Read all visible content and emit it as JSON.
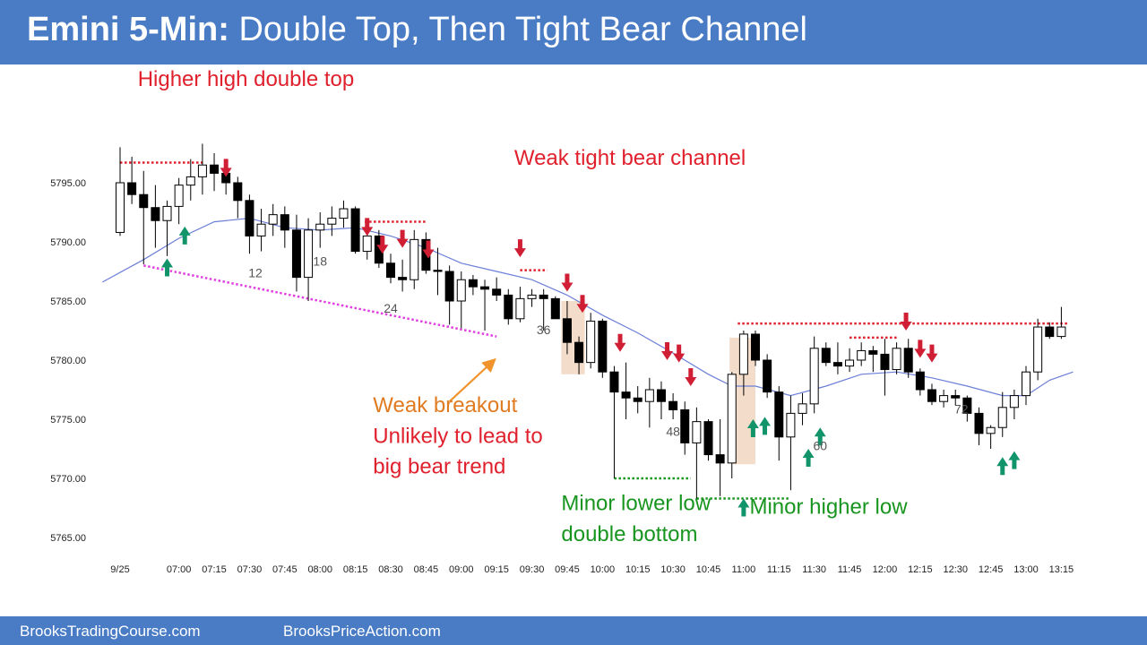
{
  "header": {
    "title_bold": "Emini 5-Min:",
    "title_rest": "Double Top, Then Tight Bear Channel"
  },
  "footer": {
    "left_link": "BrooksTradingCourse.com",
    "right_link": "BrooksPriceAction.com"
  },
  "colors": {
    "header_bg": "#4a7cc5",
    "bull_body": "#ffffff",
    "bear_body": "#000000",
    "ema": "#6b7fd7",
    "red_arrow": "#d01f35",
    "green_arrow": "#12946b",
    "red_text": "#e0202c",
    "green_text": "#18951f",
    "orange_text": "#e07b21",
    "magenta_line": "#e040e0",
    "highlight": "#f3dcc9"
  },
  "chart_data": {
    "type": "candlestick",
    "title": "Emini 5-Min: Double Top, Then Tight Bear Channel",
    "ylim": [
      5763,
      5800
    ],
    "y_ticks": [
      5765.0,
      5770.0,
      5775.0,
      5780.0,
      5785.0,
      5790.0,
      5795.0
    ],
    "y_tick_labels": [
      "5765.00",
      "5770.00",
      "5775.00",
      "5780.00",
      "5785.00",
      "5790.00",
      "5795.00"
    ],
    "x_tick_labels": [
      {
        "bar": 0,
        "label": "9/25"
      },
      {
        "bar": 5,
        "label": "07:00"
      },
      {
        "bar": 8,
        "label": "07:15"
      },
      {
        "bar": 11,
        "label": "07:30"
      },
      {
        "bar": 14,
        "label": "07:45"
      },
      {
        "bar": 17,
        "label": "08:00"
      },
      {
        "bar": 20,
        "label": "08:15"
      },
      {
        "bar": 23,
        "label": "08:30"
      },
      {
        "bar": 26,
        "label": "08:45"
      },
      {
        "bar": 29,
        "label": "09:00"
      },
      {
        "bar": 32,
        "label": "09:15"
      },
      {
        "bar": 35,
        "label": "09:30"
      },
      {
        "bar": 38,
        "label": "09:45"
      },
      {
        "bar": 41,
        "label": "10:00"
      },
      {
        "bar": 44,
        "label": "10:15"
      },
      {
        "bar": 47,
        "label": "10:30"
      },
      {
        "bar": 50,
        "label": "10:45"
      },
      {
        "bar": 53,
        "label": "11:00"
      },
      {
        "bar": 56,
        "label": "11:15"
      },
      {
        "bar": 59,
        "label": "11:30"
      },
      {
        "bar": 62,
        "label": "11:45"
      },
      {
        "bar": 65,
        "label": "12:00"
      },
      {
        "bar": 68,
        "label": "12:15"
      },
      {
        "bar": 71,
        "label": "12:30"
      },
      {
        "bar": 74,
        "label": "12:45"
      },
      {
        "bar": 77,
        "label": "13:00"
      },
      {
        "bar": 80,
        "label": "13:15"
      }
    ],
    "bars": [
      {
        "o": 5790.8,
        "h": 5798.0,
        "l": 5790.5,
        "c": 5795.0
      },
      {
        "o": 5795.0,
        "h": 5797.2,
        "l": 5793.2,
        "c": 5794.0
      },
      {
        "o": 5794.0,
        "h": 5796.0,
        "l": 5788.1,
        "c": 5792.9
      },
      {
        "o": 5792.9,
        "h": 5794.8,
        "l": 5789.5,
        "c": 5791.8
      },
      {
        "o": 5791.8,
        "h": 5793.5,
        "l": 5788.8,
        "c": 5793.0
      },
      {
        "o": 5793.0,
        "h": 5795.4,
        "l": 5791.5,
        "c": 5794.8
      },
      {
        "o": 5794.8,
        "h": 5797.0,
        "l": 5793.5,
        "c": 5795.5
      },
      {
        "o": 5795.5,
        "h": 5798.3,
        "l": 5794.0,
        "c": 5796.5
      },
      {
        "o": 5796.5,
        "h": 5797.5,
        "l": 5794.3,
        "c": 5795.8
      },
      {
        "o": 5795.8,
        "h": 5796.8,
        "l": 5794.0,
        "c": 5795.0
      },
      {
        "o": 5795.0,
        "h": 5795.5,
        "l": 5792.0,
        "c": 5793.5
      },
      {
        "o": 5793.5,
        "h": 5794.0,
        "l": 5789.0,
        "c": 5790.5
      },
      {
        "o": 5790.5,
        "h": 5792.8,
        "l": 5789.2,
        "c": 5791.5
      },
      {
        "o": 5791.5,
        "h": 5793.2,
        "l": 5790.5,
        "c": 5792.3
      },
      {
        "o": 5792.3,
        "h": 5793.0,
        "l": 5789.5,
        "c": 5791.0
      },
      {
        "o": 5791.0,
        "h": 5792.3,
        "l": 5785.8,
        "c": 5787.0
      },
      {
        "o": 5787.0,
        "h": 5792.0,
        "l": 5785.0,
        "c": 5791.0
      },
      {
        "o": 5791.0,
        "h": 5792.5,
        "l": 5789.5,
        "c": 5791.5
      },
      {
        "o": 5791.5,
        "h": 5793.0,
        "l": 5790.5,
        "c": 5792.0
      },
      {
        "o": 5792.0,
        "h": 5793.5,
        "l": 5791.2,
        "c": 5792.8
      },
      {
        "o": 5792.8,
        "h": 5793.0,
        "l": 5789.0,
        "c": 5789.2
      },
      {
        "o": 5789.2,
        "h": 5791.5,
        "l": 5788.5,
        "c": 5790.5
      },
      {
        "o": 5790.5,
        "h": 5791.0,
        "l": 5787.8,
        "c": 5788.2
      },
      {
        "o": 5788.2,
        "h": 5789.0,
        "l": 5786.5,
        "c": 5787.0
      },
      {
        "o": 5787.0,
        "h": 5788.5,
        "l": 5785.8,
        "c": 5786.8
      },
      {
        "o": 5786.8,
        "h": 5791.0,
        "l": 5786.0,
        "c": 5790.2
      },
      {
        "o": 5790.2,
        "h": 5790.8,
        "l": 5787.3,
        "c": 5787.6
      },
      {
        "o": 5787.6,
        "h": 5789.5,
        "l": 5785.5,
        "c": 5787.5
      },
      {
        "o": 5787.5,
        "h": 5788.0,
        "l": 5783.0,
        "c": 5785.0
      },
      {
        "o": 5785.0,
        "h": 5787.5,
        "l": 5782.7,
        "c": 5786.8
      },
      {
        "o": 5786.8,
        "h": 5787.2,
        "l": 5785.5,
        "c": 5786.2
      },
      {
        "o": 5786.2,
        "h": 5786.8,
        "l": 5782.5,
        "c": 5786.0
      },
      {
        "o": 5786.0,
        "h": 5787.0,
        "l": 5785.0,
        "c": 5785.5
      },
      {
        "o": 5785.5,
        "h": 5786.0,
        "l": 5783.0,
        "c": 5783.5
      },
      {
        "o": 5783.5,
        "h": 5786.2,
        "l": 5783.2,
        "c": 5785.2
      },
      {
        "o": 5785.2,
        "h": 5786.0,
        "l": 5784.5,
        "c": 5785.5
      },
      {
        "o": 5785.5,
        "h": 5786.0,
        "l": 5782.5,
        "c": 5785.2
      },
      {
        "o": 5785.2,
        "h": 5785.4,
        "l": 5783.5,
        "c": 5783.5
      },
      {
        "o": 5783.5,
        "h": 5785.0,
        "l": 5780.5,
        "c": 5781.5
      },
      {
        "o": 5781.5,
        "h": 5782.0,
        "l": 5778.8,
        "c": 5779.8
      },
      {
        "o": 5779.8,
        "h": 5784.0,
        "l": 5779.3,
        "c": 5783.3
      },
      {
        "o": 5783.3,
        "h": 5783.5,
        "l": 5778.5,
        "c": 5779.0
      },
      {
        "o": 5779.0,
        "h": 5779.5,
        "l": 5770.0,
        "c": 5777.3
      },
      {
        "o": 5777.3,
        "h": 5779.8,
        "l": 5775.0,
        "c": 5776.8
      },
      {
        "o": 5776.8,
        "h": 5777.8,
        "l": 5775.5,
        "c": 5776.5
      },
      {
        "o": 5776.5,
        "h": 5778.5,
        "l": 5774.3,
        "c": 5777.5
      },
      {
        "o": 5777.5,
        "h": 5778.2,
        "l": 5775.0,
        "c": 5776.5
      },
      {
        "o": 5776.5,
        "h": 5777.2,
        "l": 5775.0,
        "c": 5775.8
      },
      {
        "o": 5775.8,
        "h": 5776.5,
        "l": 5772.0,
        "c": 5773.0
      },
      {
        "o": 5773.0,
        "h": 5776.0,
        "l": 5768.2,
        "c": 5774.8
      },
      {
        "o": 5774.8,
        "h": 5775.0,
        "l": 5771.5,
        "c": 5772.0
      },
      {
        "o": 5772.0,
        "h": 5775.0,
        "l": 5768.5,
        "c": 5771.3
      },
      {
        "o": 5771.3,
        "h": 5779.0,
        "l": 5770.0,
        "c": 5778.8
      },
      {
        "o": 5778.8,
        "h": 5782.5,
        "l": 5777.0,
        "c": 5782.2
      },
      {
        "o": 5782.2,
        "h": 5782.5,
        "l": 5779.5,
        "c": 5780.0
      },
      {
        "o": 5780.0,
        "h": 5780.5,
        "l": 5776.8,
        "c": 5777.3
      },
      {
        "o": 5777.3,
        "h": 5777.8,
        "l": 5771.5,
        "c": 5773.5
      },
      {
        "o": 5773.5,
        "h": 5777.0,
        "l": 5769.0,
        "c": 5775.5
      },
      {
        "o": 5775.5,
        "h": 5777.2,
        "l": 5774.5,
        "c": 5776.3
      },
      {
        "o": 5776.3,
        "h": 5782.0,
        "l": 5775.5,
        "c": 5781.0
      },
      {
        "o": 5781.0,
        "h": 5781.5,
        "l": 5779.5,
        "c": 5779.8
      },
      {
        "o": 5779.8,
        "h": 5781.5,
        "l": 5778.8,
        "c": 5779.5
      },
      {
        "o": 5779.5,
        "h": 5781.0,
        "l": 5779.0,
        "c": 5780.0
      },
      {
        "o": 5780.0,
        "h": 5781.5,
        "l": 5779.5,
        "c": 5780.8
      },
      {
        "o": 5780.8,
        "h": 5781.2,
        "l": 5779.0,
        "c": 5780.5
      },
      {
        "o": 5780.5,
        "h": 5781.8,
        "l": 5777.0,
        "c": 5779.2
      },
      {
        "o": 5779.2,
        "h": 5781.5,
        "l": 5778.8,
        "c": 5781.0
      },
      {
        "o": 5781.0,
        "h": 5781.8,
        "l": 5778.5,
        "c": 5779.0
      },
      {
        "o": 5779.0,
        "h": 5779.3,
        "l": 5777.0,
        "c": 5777.5
      },
      {
        "o": 5777.5,
        "h": 5778.0,
        "l": 5776.2,
        "c": 5776.5
      },
      {
        "o": 5776.5,
        "h": 5777.5,
        "l": 5776.0,
        "c": 5777.0
      },
      {
        "o": 5777.0,
        "h": 5777.5,
        "l": 5776.2,
        "c": 5776.8
      },
      {
        "o": 5776.8,
        "h": 5777.0,
        "l": 5774.8,
        "c": 5775.5
      },
      {
        "o": 5775.5,
        "h": 5776.0,
        "l": 5772.8,
        "c": 5773.8
      },
      {
        "o": 5773.8,
        "h": 5774.5,
        "l": 5772.5,
        "c": 5774.3
      },
      {
        "o": 5774.3,
        "h": 5777.3,
        "l": 5773.5,
        "c": 5776.0
      },
      {
        "o": 5776.0,
        "h": 5777.5,
        "l": 5775.0,
        "c": 5777.0
      },
      {
        "o": 5777.0,
        "h": 5779.5,
        "l": 5776.2,
        "c": 5779.0
      },
      {
        "o": 5779.0,
        "h": 5783.5,
        "l": 5778.3,
        "c": 5782.8
      },
      {
        "o": 5782.8,
        "h": 5783.2,
        "l": 5781.8,
        "c": 5782.0
      },
      {
        "o": 5782.0,
        "h": 5784.5,
        "l": 5781.8,
        "c": 5782.8
      }
    ],
    "ema": [
      {
        "bar": -1.5,
        "v": 5786.6
      },
      {
        "bar": 2,
        "v": 5788.5
      },
      {
        "bar": 5,
        "v": 5790.3
      },
      {
        "bar": 8,
        "v": 5791.7
      },
      {
        "bar": 11,
        "v": 5792.0
      },
      {
        "bar": 14,
        "v": 5791.2
      },
      {
        "bar": 17,
        "v": 5791.0
      },
      {
        "bar": 20,
        "v": 5791.2
      },
      {
        "bar": 23,
        "v": 5790.5
      },
      {
        "bar": 26,
        "v": 5789.5
      },
      {
        "bar": 29,
        "v": 5788.2
      },
      {
        "bar": 32,
        "v": 5787.5
      },
      {
        "bar": 35,
        "v": 5786.8
      },
      {
        "bar": 38,
        "v": 5785.5
      },
      {
        "bar": 41,
        "v": 5783.8
      },
      {
        "bar": 44,
        "v": 5782.3
      },
      {
        "bar": 47,
        "v": 5780.6
      },
      {
        "bar": 50,
        "v": 5778.8
      },
      {
        "bar": 52,
        "v": 5777.8
      },
      {
        "bar": 54,
        "v": 5777.8
      },
      {
        "bar": 57,
        "v": 5777.0
      },
      {
        "bar": 60,
        "v": 5777.8
      },
      {
        "bar": 63,
        "v": 5778.8
      },
      {
        "bar": 66,
        "v": 5779.0
      },
      {
        "bar": 69,
        "v": 5778.5
      },
      {
        "bar": 72,
        "v": 5777.8
      },
      {
        "bar": 75,
        "v": 5777.0
      },
      {
        "bar": 77,
        "v": 5777.0
      },
      {
        "bar": 79,
        "v": 5778.3
      },
      {
        "bar": 81,
        "v": 5779.0
      }
    ],
    "bar_number_labels": [
      {
        "text": "12",
        "bar": 11.5,
        "price": 5787.0
      },
      {
        "text": "18",
        "bar": 17,
        "price": 5788.0
      },
      {
        "text": "24",
        "bar": 23,
        "price": 5784.0
      },
      {
        "text": "36",
        "bar": 36,
        "price": 5782.2
      },
      {
        "text": "48",
        "bar": 47,
        "price": 5773.6
      },
      {
        "text": "60",
        "bar": 59.5,
        "price": 5772.4
      },
      {
        "text": "72",
        "bar": 71.5,
        "price": 5775.5
      }
    ],
    "annotations": [
      {
        "id": "higher-high-double-top",
        "text": "Higher high double top",
        "color": "red",
        "bar": 1.5,
        "price": 5803.2
      },
      {
        "id": "weak-tight-bear-channel",
        "text": "Weak tight bear channel",
        "color": "red",
        "bar": 33.5,
        "price": 5796.5
      },
      {
        "id": "weak-breakout",
        "text": "Weak breakout",
        "color": "orange",
        "bar": 21.5,
        "price": 5775.6
      },
      {
        "id": "unlikely-line1",
        "text": "Unlikely to lead to",
        "color": "red",
        "bar": 21.5,
        "price": 5773.0
      },
      {
        "id": "unlikely-line2",
        "text": "big bear trend",
        "color": "red",
        "bar": 21.5,
        "price": 5770.4
      },
      {
        "id": "minor-lower-low-1",
        "text": "Minor lower low",
        "color": "green",
        "bar": 37.5,
        "price": 5767.3
      },
      {
        "id": "minor-lower-low-2",
        "text": "double bottom",
        "color": "green",
        "bar": 37.5,
        "price": 5764.7
      },
      {
        "id": "minor-higher-low",
        "text": "Minor higher low",
        "color": "green",
        "bar": 53.5,
        "price": 5767.0
      }
    ],
    "reference_lines": [
      {
        "color": "red",
        "style": "dotted",
        "x1": 0,
        "x2": 7,
        "y1": 5796.7,
        "y2": 5796.7
      },
      {
        "color": "red",
        "style": "dotted",
        "x1": 20.8,
        "x2": 26,
        "y1": 5791.7,
        "y2": 5791.7
      },
      {
        "color": "red",
        "style": "dotted",
        "x1": 34,
        "x2": 36.3,
        "y1": 5787.6,
        "y2": 5787.6
      },
      {
        "color": "red",
        "style": "dotted",
        "x1": 52.5,
        "x2": 80.5,
        "y1": 5783.1,
        "y2": 5783.1
      },
      {
        "color": "red",
        "style": "dotted",
        "x1": 62,
        "x2": 66,
        "y1": 5781.9,
        "y2": 5781.9
      },
      {
        "color": "magenta",
        "style": "dotted",
        "x1": 2,
        "x2": 32,
        "y1": 5788.0,
        "y2": 5782.0
      },
      {
        "color": "green",
        "style": "dotted",
        "x1": 42,
        "x2": 48.5,
        "y1": 5770.0,
        "y2": 5770.0
      },
      {
        "color": "green",
        "style": "dotted",
        "x1": 49,
        "x2": 57,
        "y1": 5768.3,
        "y2": 5768.3
      }
    ],
    "highlights": [
      {
        "x1": 37.5,
        "x2": 39.5,
        "y1": 5785.0,
        "y2": 5778.8
      },
      {
        "x1": 52,
        "x2": 54,
        "y1": 5779.0,
        "y2": 5771.2
      },
      {
        "x1": 51.8,
        "x2": 54,
        "y1": 5781.9,
        "y2": 5779.0
      }
    ],
    "orange_arrow": {
      "x1": 28,
      "y1": 5776.5,
      "x2": 31.8,
      "y2": 5780.0
    },
    "markers": {
      "red_down": [
        {
          "bar": 9,
          "price": 5795.5
        },
        {
          "bar": 21,
          "price": 5790.5
        },
        {
          "bar": 22.3,
          "price": 5789.0
        },
        {
          "bar": 24,
          "price": 5789.5
        },
        {
          "bar": 26.2,
          "price": 5788.6
        },
        {
          "bar": 34,
          "price": 5788.7
        },
        {
          "bar": 38,
          "price": 5785.8
        },
        {
          "bar": 39.3,
          "price": 5784.0
        },
        {
          "bar": 42.5,
          "price": 5780.7
        },
        {
          "bar": 46.5,
          "price": 5780.0
        },
        {
          "bar": 47.5,
          "price": 5779.8
        },
        {
          "bar": 48.5,
          "price": 5777.8
        },
        {
          "bar": 66.8,
          "price": 5782.5
        },
        {
          "bar": 68,
          "price": 5780.2
        },
        {
          "bar": 69,
          "price": 5779.8
        }
      ],
      "green_up": [
        {
          "bar": 4,
          "price": 5788.6
        },
        {
          "bar": 5.5,
          "price": 5791.3
        },
        {
          "bar": 53,
          "price": 5768.3
        },
        {
          "bar": 53.8,
          "price": 5775.0
        },
        {
          "bar": 54.8,
          "price": 5775.2
        },
        {
          "bar": 58.5,
          "price": 5772.5
        },
        {
          "bar": 59.5,
          "price": 5774.3
        },
        {
          "bar": 75,
          "price": 5771.8
        },
        {
          "bar": 76,
          "price": 5772.3
        }
      ]
    }
  }
}
